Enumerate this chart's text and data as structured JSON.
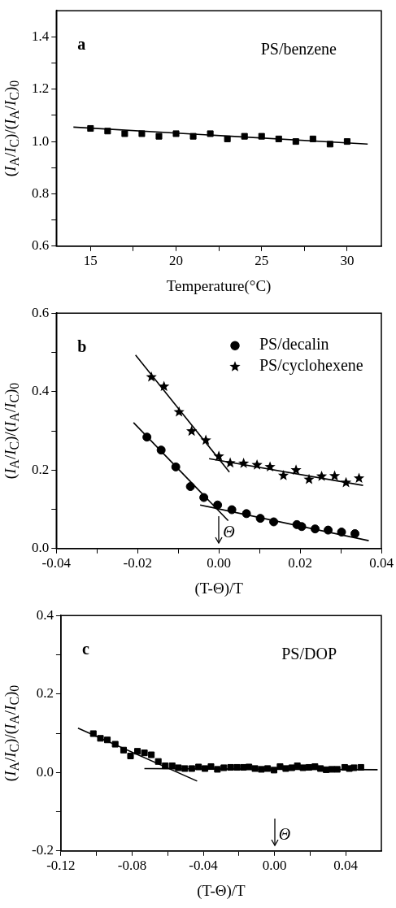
{
  "chart_data": [
    {
      "type": "scatter",
      "xlabel": "Temperature(°C)",
      "ylabel": "(I$_{A}$/I$_{C}$)/(I$_{A}$/I$_{C}$)$_{0}$",
      "annotations": [
        "a",
        "PS/benzene"
      ],
      "xlim": [
        13,
        32
      ],
      "xticks": [
        15,
        {
          "value": 17.5,
          "label": null
        },
        20,
        {
          "value": 22.5,
          "label": null
        },
        25,
        {
          "value": 27.5,
          "label": null
        },
        30
      ],
      "ylim": [
        0.6,
        1.5
      ],
      "yticks": [
        {
          "value": 0.6,
          "label": "0.6"
        },
        {
          "value": 0.7,
          "label": null
        },
        {
          "value": 0.8,
          "label": "0.8"
        },
        {
          "value": 0.9,
          "label": null
        },
        {
          "value": 1.0,
          "label": "1.0"
        },
        {
          "value": 1.1,
          "label": null
        },
        {
          "value": 1.2,
          "label": "1.2"
        },
        {
          "value": 1.3,
          "label": null
        },
        {
          "value": 1.4,
          "label": "1.4"
        }
      ],
      "series": [
        {
          "marker": "square",
          "color": "#000000",
          "x": [
            15,
            16,
            17,
            18,
            19,
            20,
            21,
            22,
            23,
            24,
            25,
            26,
            27,
            28,
            29,
            30
          ],
          "values": [
            1.05,
            1.04,
            1.03,
            1.03,
            1.02,
            1.03,
            1.02,
            1.03,
            1.01,
            1.02,
            1.02,
            1.01,
            1.0,
            1.01,
            0.99,
            1.0
          ]
        },
        {
          "type": "line",
          "marker": "none",
          "color": "#000000",
          "x": [
            14,
            31.2
          ],
          "values": [
            1.055,
            0.99
          ]
        }
      ]
    },
    {
      "type": "scatter",
      "xlabel": "(T-Θ)/T",
      "ylabel": "(I$_{A}$/I$_{C}$)/(I$_{A}$/I$_{C}$)$_{0}$",
      "annotations": [
        "b"
      ],
      "ref_lines": [
        {
          "axis": "x",
          "value": 0,
          "label": "Θ"
        }
      ],
      "legend": "top right",
      "xlim": [
        -0.04,
        0.04
      ],
      "xticks": [
        -0.04,
        {
          "value": -0.03,
          "label": null
        },
        -0.02,
        {
          "value": -0.01,
          "label": null
        },
        {
          "value": 0,
          "label": "0.00"
        },
        {
          "value": 0.01,
          "label": null
        },
        0.02,
        {
          "value": 0.03,
          "label": null
        },
        0.04
      ],
      "ylim": [
        0,
        0.6
      ],
      "yticks": [
        {
          "value": 0,
          "label": "0.0"
        },
        {
          "value": 0.1,
          "label": null
        },
        0.2,
        {
          "value": 0.3,
          "label": null
        },
        0.4,
        {
          "value": 0.5,
          "label": null
        },
        0.6
      ],
      "series": [
        {
          "name": "PS/decalin",
          "marker": "circle",
          "color": "#000000",
          "x": [
            -0.0177,
            -0.0142,
            -0.0106,
            -0.007,
            -0.0037,
            -0.0003,
            0.0032,
            0.0068,
            0.0102,
            0.0135,
            0.0192,
            0.0204,
            0.0237,
            0.0269,
            0.0302,
            0.0335
          ],
          "values": [
            0.284,
            0.251,
            0.208,
            0.158,
            0.13,
            0.111,
            0.099,
            0.089,
            0.077,
            0.068,
            0.061,
            0.056,
            0.05,
            0.047,
            0.042,
            0.038
          ]
        },
        {
          "name": "PS/cyclohexene",
          "marker": "star",
          "color": "#000000",
          "x": [
            -0.0166,
            -0.0135,
            -0.0098,
            -0.0067,
            -0.0032,
            0,
            0.0028,
            0.0061,
            0.0094,
            0.0126,
            0.0159,
            0.019,
            0.0222,
            0.0253,
            0.0285,
            0.0313,
            0.0345
          ],
          "values": [
            0.437,
            0.413,
            0.348,
            0.299,
            0.276,
            0.235,
            0.218,
            0.217,
            0.213,
            0.208,
            0.186,
            0.2,
            0.176,
            0.184,
            0.185,
            0.168,
            0.179
          ]
        },
        {
          "type": "line",
          "marker": "none",
          "color": "#000000",
          "x": [
            -0.0205,
            0.0026
          ],
          "values": [
            0.493,
            0.195
          ]
        },
        {
          "type": "line",
          "marker": "none",
          "color": "#000000",
          "x": [
            -0.0024,
            0.0355
          ],
          "values": [
            0.229,
            0.161
          ]
        },
        {
          "type": "line",
          "marker": "none",
          "color": "#000000",
          "x": [
            -0.021,
            0.0023
          ],
          "values": [
            0.321,
            0.071
          ]
        },
        {
          "type": "line",
          "marker": "none",
          "color": "#000000",
          "x": [
            -0.0046,
            0.0369
          ],
          "values": [
            0.111,
            0.02
          ]
        }
      ]
    },
    {
      "type": "scatter",
      "xlabel": "(T-Θ)/T",
      "ylabel": "(I$_{A}$/I$_{C}$)/(I$_{A}$/I$_{C}$)$_{0}$",
      "annotations": [
        "c",
        "PS/DOP"
      ],
      "ref_lines": [
        {
          "axis": "x",
          "value": 0,
          "label": "Θ"
        }
      ],
      "xlim": [
        -0.12,
        0.06
      ],
      "xticks": [
        -0.12,
        {
          "value": -0.1,
          "label": null
        },
        -0.08,
        {
          "value": -0.06,
          "label": null
        },
        -0.04,
        {
          "value": -0.02,
          "label": null
        },
        {
          "value": 0,
          "label": "0.00"
        },
        {
          "value": 0.02,
          "label": null
        },
        0.04
      ],
      "ylim": [
        -0.2,
        0.4
      ],
      "yticks": [
        -0.2,
        {
          "value": -0.1,
          "label": null
        },
        {
          "value": 0,
          "label": "0.0"
        },
        {
          "value": 0.1,
          "label": null
        },
        0.2,
        {
          "value": 0.3,
          "label": null
        },
        0.4
      ],
      "series": [
        {
          "marker": "square",
          "color": "#000000",
          "x": [
            -0.1018,
            -0.0978,
            -0.0939,
            -0.0895,
            -0.0848,
            -0.0809,
            -0.077,
            -0.0731,
            -0.0692,
            -0.0653,
            -0.0614,
            -0.0575,
            -0.054,
            -0.0504,
            -0.0465,
            -0.0427,
            -0.0391,
            -0.0357,
            -0.0321,
            -0.0285,
            -0.0247,
            -0.0211,
            -0.0175,
            -0.0144,
            -0.011,
            -0.0074,
            -0.0039,
            -0.0003,
            0.0031,
            0.0063,
            0.0097,
            0.0128,
            0.016,
            0.0193,
            0.0227,
            0.0258,
            0.029,
            0.0321,
            0.0352,
            0.0394,
            0.042,
            0.0446,
            0.0485
          ],
          "values": [
            0.099,
            0.087,
            0.083,
            0.072,
            0.057,
            0.042,
            0.054,
            0.05,
            0.045,
            0.028,
            0.017,
            0.017,
            0.012,
            0.01,
            0.01,
            0.014,
            0.01,
            0.015,
            0.008,
            0.012,
            0.013,
            0.013,
            0.013,
            0.014,
            0.01,
            0.008,
            0.01,
            0.006,
            0.015,
            0.01,
            0.012,
            0.017,
            0.012,
            0.013,
            0.015,
            0.01,
            0.007,
            0.008,
            0.008,
            0.013,
            0.01,
            0.012,
            0.013
          ]
        },
        {
          "type": "line",
          "marker": "none",
          "color": "#000000",
          "x": [
            -0.1104,
            -0.0435
          ],
          "values": [
            0.113,
            -0.022
          ]
        },
        {
          "type": "line",
          "marker": "none",
          "color": "#000000",
          "x": [
            -0.0731,
            0.0579
          ],
          "values": [
            0.01,
            0.007
          ]
        }
      ]
    }
  ]
}
